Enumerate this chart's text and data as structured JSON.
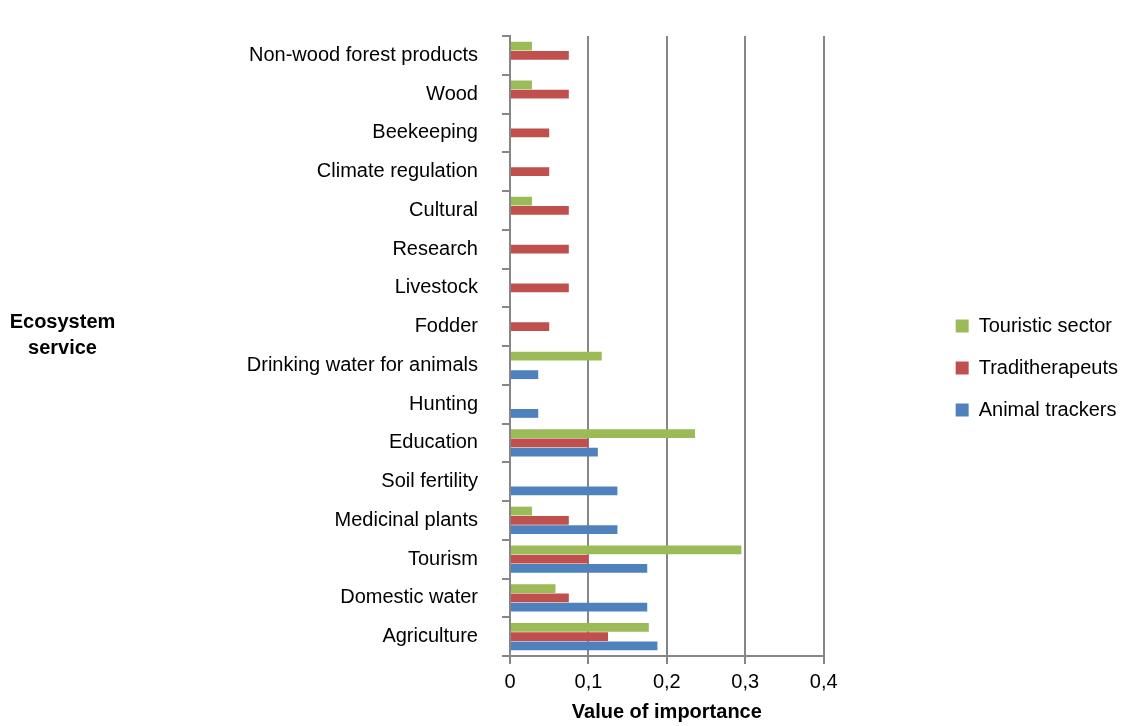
{
  "chart_data": {
    "type": "bar",
    "orientation": "horizontal",
    "xlabel": "Value of importance",
    "annotations": [
      "Ecosystem service"
    ],
    "categories": [
      "Non-wood forest products",
      "Wood",
      "Beekeeping",
      "Climate regulation",
      "Cultural",
      "Research",
      "Livestock",
      "Fodder",
      "Drinking water for animals",
      "Hunting",
      "Education",
      "Soil fertility",
      "Medicinal plants",
      "Tourism",
      "Domestic water",
      "Agriculture"
    ],
    "series": [
      {
        "name": "Touristic sector",
        "color": "#9bbb59",
        "values": [
          0.028,
          0.028,
          null,
          null,
          0.028,
          null,
          null,
          null,
          0.117,
          null,
          0.236,
          null,
          0.028,
          0.295,
          0.058,
          0.177
        ]
      },
      {
        "name": "Traditherapeuts",
        "color": "#c0504d",
        "values": [
          0.075,
          0.075,
          0.05,
          0.05,
          0.075,
          0.075,
          0.075,
          0.05,
          null,
          null,
          0.1,
          null,
          0.075,
          0.1,
          0.075,
          0.125
        ]
      },
      {
        "name": "Animal trackers",
        "color": "#4f81bd",
        "values": [
          null,
          null,
          null,
          null,
          null,
          null,
          null,
          null,
          0.036,
          0.036,
          0.112,
          0.137,
          0.137,
          0.175,
          0.175,
          0.188
        ]
      }
    ],
    "xlim": [
      0,
      0.4
    ],
    "xticks": [
      {
        "value": 0,
        "label": "0"
      },
      {
        "value": 0.1,
        "label": "0,1"
      },
      {
        "value": 0.2,
        "label": "0,2"
      },
      {
        "value": 0.3,
        "label": "0,3"
      },
      {
        "value": 0.4,
        "label": "0,4"
      }
    ],
    "grid": "x",
    "legend": "right"
  }
}
